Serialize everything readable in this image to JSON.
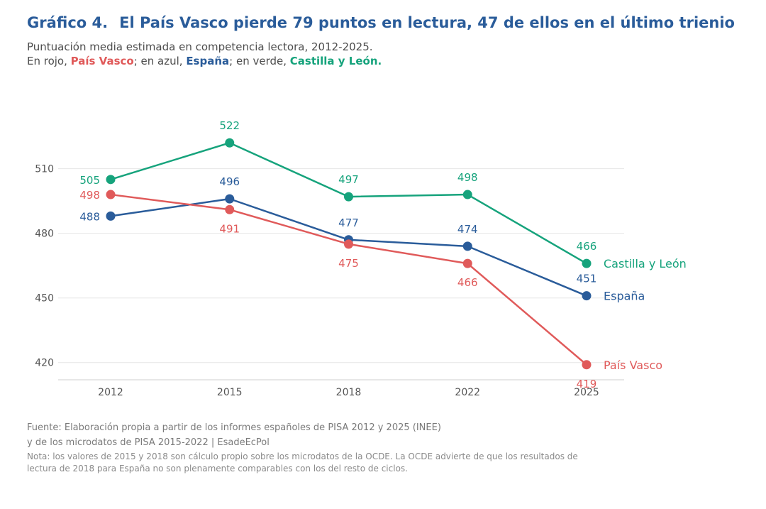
{
  "header": {
    "figure_number": "Gráfico 4.",
    "title": "El País Vasco pierde 79 puntos en lectura, 47 de ellos en el último trienio",
    "subtitle_line1": "Puntuación media estimada en competencia lectora, 2012-2025.",
    "subtitle_prefix": "En rojo, ",
    "subtitle_red_label": "País Vasco",
    "subtitle_mid1": "; en azul, ",
    "subtitle_blue_label": "España",
    "subtitle_mid2": "; en verde, ",
    "subtitle_green_label": "Castilla y León."
  },
  "chart_data": {
    "type": "line",
    "categories": [
      "2012",
      "2015",
      "2018",
      "2022",
      "2025"
    ],
    "ylim": [
      412,
      529
    ],
    "yticks": [
      420,
      450,
      480,
      510
    ],
    "grid": true,
    "series": [
      {
        "name": "Castilla y León",
        "color": "#16a37c",
        "values": [
          505,
          522,
          497,
          498,
          466
        ],
        "labels": [
          "505",
          "522",
          "497",
          "498",
          "466"
        ]
      },
      {
        "name": "España",
        "color": "#2a5c9a",
        "values": [
          488,
          496,
          477,
          474,
          451
        ],
        "labels": [
          "488",
          "496",
          "477",
          "474",
          "451"
        ]
      },
      {
        "name": "País Vasco",
        "color": "#e05a5a",
        "values": [
          498,
          491,
          475,
          466,
          419
        ],
        "labels": [
          "498",
          "491",
          "475",
          "466",
          "419"
        ]
      }
    ]
  },
  "footer": {
    "source_line1": "Fuente: Elaboración propia a partir de los informes españoles de PISA 2012 y 2025 (INEE)",
    "source_line2": "y de los microdatos de PISA 2015-2022 | EsadeEcPol",
    "note_line1": "Nota: los valores de 2015 y 2018 son cálculo propio sobre los microdatos de la OCDE. La OCDE advierte de que los resultados de",
    "note_line2": "lectura de 2018 para España no son plenamente comparables con los del resto de ciclos."
  }
}
